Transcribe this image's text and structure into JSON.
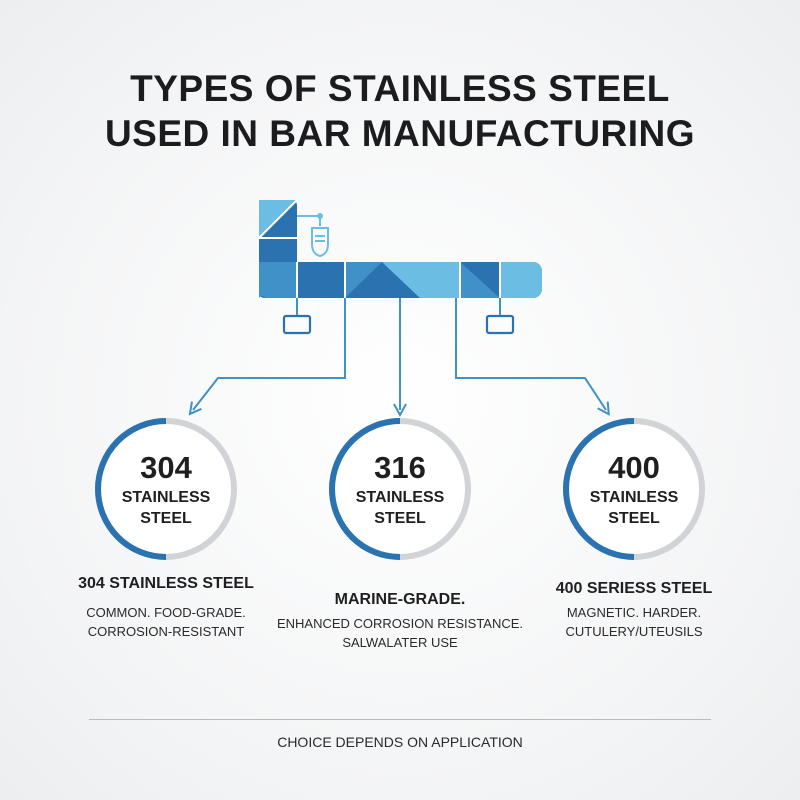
{
  "title": {
    "line1": "TYPES OF STAINLESS STEEL",
    "line2": "USED IN BAR MANUFACTURING"
  },
  "colors": {
    "dark_blue": "#2a72b0",
    "mid_blue": "#3f91c8",
    "light_blue": "#6bbde3",
    "ring_grey": "#d1d3d6"
  },
  "grades": [
    {
      "number": "304",
      "sub_line1": "STAINLESS",
      "sub_line2": "STEEL",
      "heading": "304 STAINLESS STEEL",
      "desc_line1": "COMMON. FOOD-GRADE.",
      "desc_line2": "CORROSION-RESISTANT"
    },
    {
      "number": "316",
      "sub_line1": "STAINLESS",
      "sub_line2": "STEEL",
      "heading": "MARINE-GRADE.",
      "desc_line1": "ENHANCED CORROSION RESISTANCE.",
      "desc_line2": "SALWALATER USE"
    },
    {
      "number": "400",
      "sub_line1": "STAINLESS",
      "sub_line2": "STEEL",
      "heading": "400 SERIESS STEEL",
      "desc_line1": "MAGNETIC. HARDER.",
      "desc_line2": "CUTULERY/UTEUSILS"
    }
  ],
  "footer": "CHOICE DEPENDS ON APPLICATION"
}
